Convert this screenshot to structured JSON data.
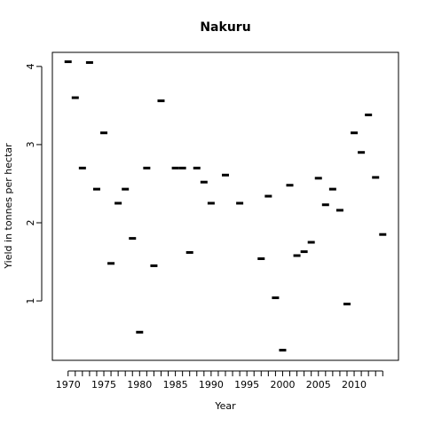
{
  "chart_data": {
    "type": "scatter",
    "title": "Nakuru",
    "xlabel": "Year",
    "ylabel": "Yield in tonnes per hectar",
    "xlim": [
      1967.8,
      2016.2
    ],
    "ylim": [
      0.24,
      4.18
    ],
    "x_ticks": [
      1970,
      1975,
      1980,
      1985,
      1990,
      1995,
      2000,
      2005,
      2010
    ],
    "y_ticks": [
      1,
      2,
      3,
      4
    ],
    "marker": "dash",
    "grid": false,
    "series": [
      {
        "x": [
          1970,
          1971,
          1972,
          1973,
          1974,
          1975,
          1976,
          1977,
          1978,
          1979,
          1980,
          1981,
          1982,
          1983,
          1985,
          1986,
          1987,
          1988,
          1989,
          1990,
          1992,
          1994,
          1997,
          1998,
          1999,
          2000,
          2001,
          2002,
          2003,
          2004,
          2005,
          2006,
          2007,
          2008,
          2009,
          2010,
          2011,
          2012,
          2013,
          2014
        ],
        "y": [
          4.06,
          3.6,
          2.7,
          4.05,
          2.43,
          3.15,
          1.48,
          2.25,
          2.43,
          1.8,
          0.6,
          2.7,
          1.45,
          3.56,
          2.7,
          2.7,
          1.62,
          2.7,
          2.52,
          2.25,
          2.61,
          2.25,
          1.54,
          2.34,
          1.04,
          0.37,
          2.48,
          1.58,
          1.63,
          1.75,
          2.57,
          2.23,
          2.43,
          2.16,
          0.96,
          3.15,
          2.9,
          3.38,
          2.58,
          1.85
        ]
      }
    ]
  }
}
